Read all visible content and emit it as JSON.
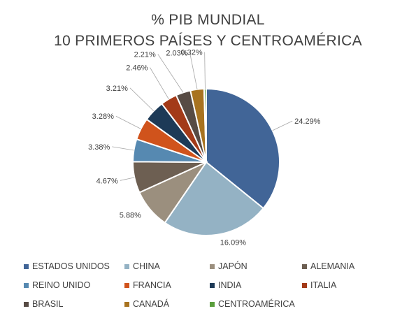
{
  "title": {
    "line1": "% PIB MUNDIAL",
    "line2": "10 PRIMEROS PAÍSES Y CENTROAMÉRICA"
  },
  "chart_data": {
    "type": "pie",
    "title": "% PIB MUNDIAL 10 PRIMEROS PAÍSES Y CENTROAMÉRICA",
    "legend_position": "bottom",
    "slices": [
      {
        "name": "ESTADOS UNIDOS",
        "value": 24.29,
        "label": "24.29%",
        "color": "#416597"
      },
      {
        "name": "CHINA",
        "value": 16.09,
        "label": "16.09%",
        "color": "#94b2c4"
      },
      {
        "name": "JAPÓN",
        "value": 5.88,
        "label": "5.88%",
        "color": "#9b8f7e"
      },
      {
        "name": "ALEMANIA",
        "value": 4.67,
        "label": "4.67%",
        "color": "#6d5f52"
      },
      {
        "name": "REINO UNIDO",
        "value": 3.38,
        "label": "3.38%",
        "color": "#5689b1"
      },
      {
        "name": "FRANCIA",
        "value": 3.28,
        "label": "3.28%",
        "color": "#d0531c"
      },
      {
        "name": "INDIA",
        "value": 3.21,
        "label": "3.21%",
        "color": "#1d3a57"
      },
      {
        "name": "ITALIA",
        "value": 2.46,
        "label": "2.46%",
        "color": "#a33a18"
      },
      {
        "name": "BRASIL",
        "value": 2.21,
        "label": "2.21%",
        "color": "#574b44"
      },
      {
        "name": "CANADÁ",
        "value": 2.03,
        "label": "2.03%",
        "color": "#a87320"
      },
      {
        "name": "CENTROAMÉRICA",
        "value": 0.32,
        "label": "0.32%",
        "color": "#5a9e3c"
      }
    ]
  }
}
